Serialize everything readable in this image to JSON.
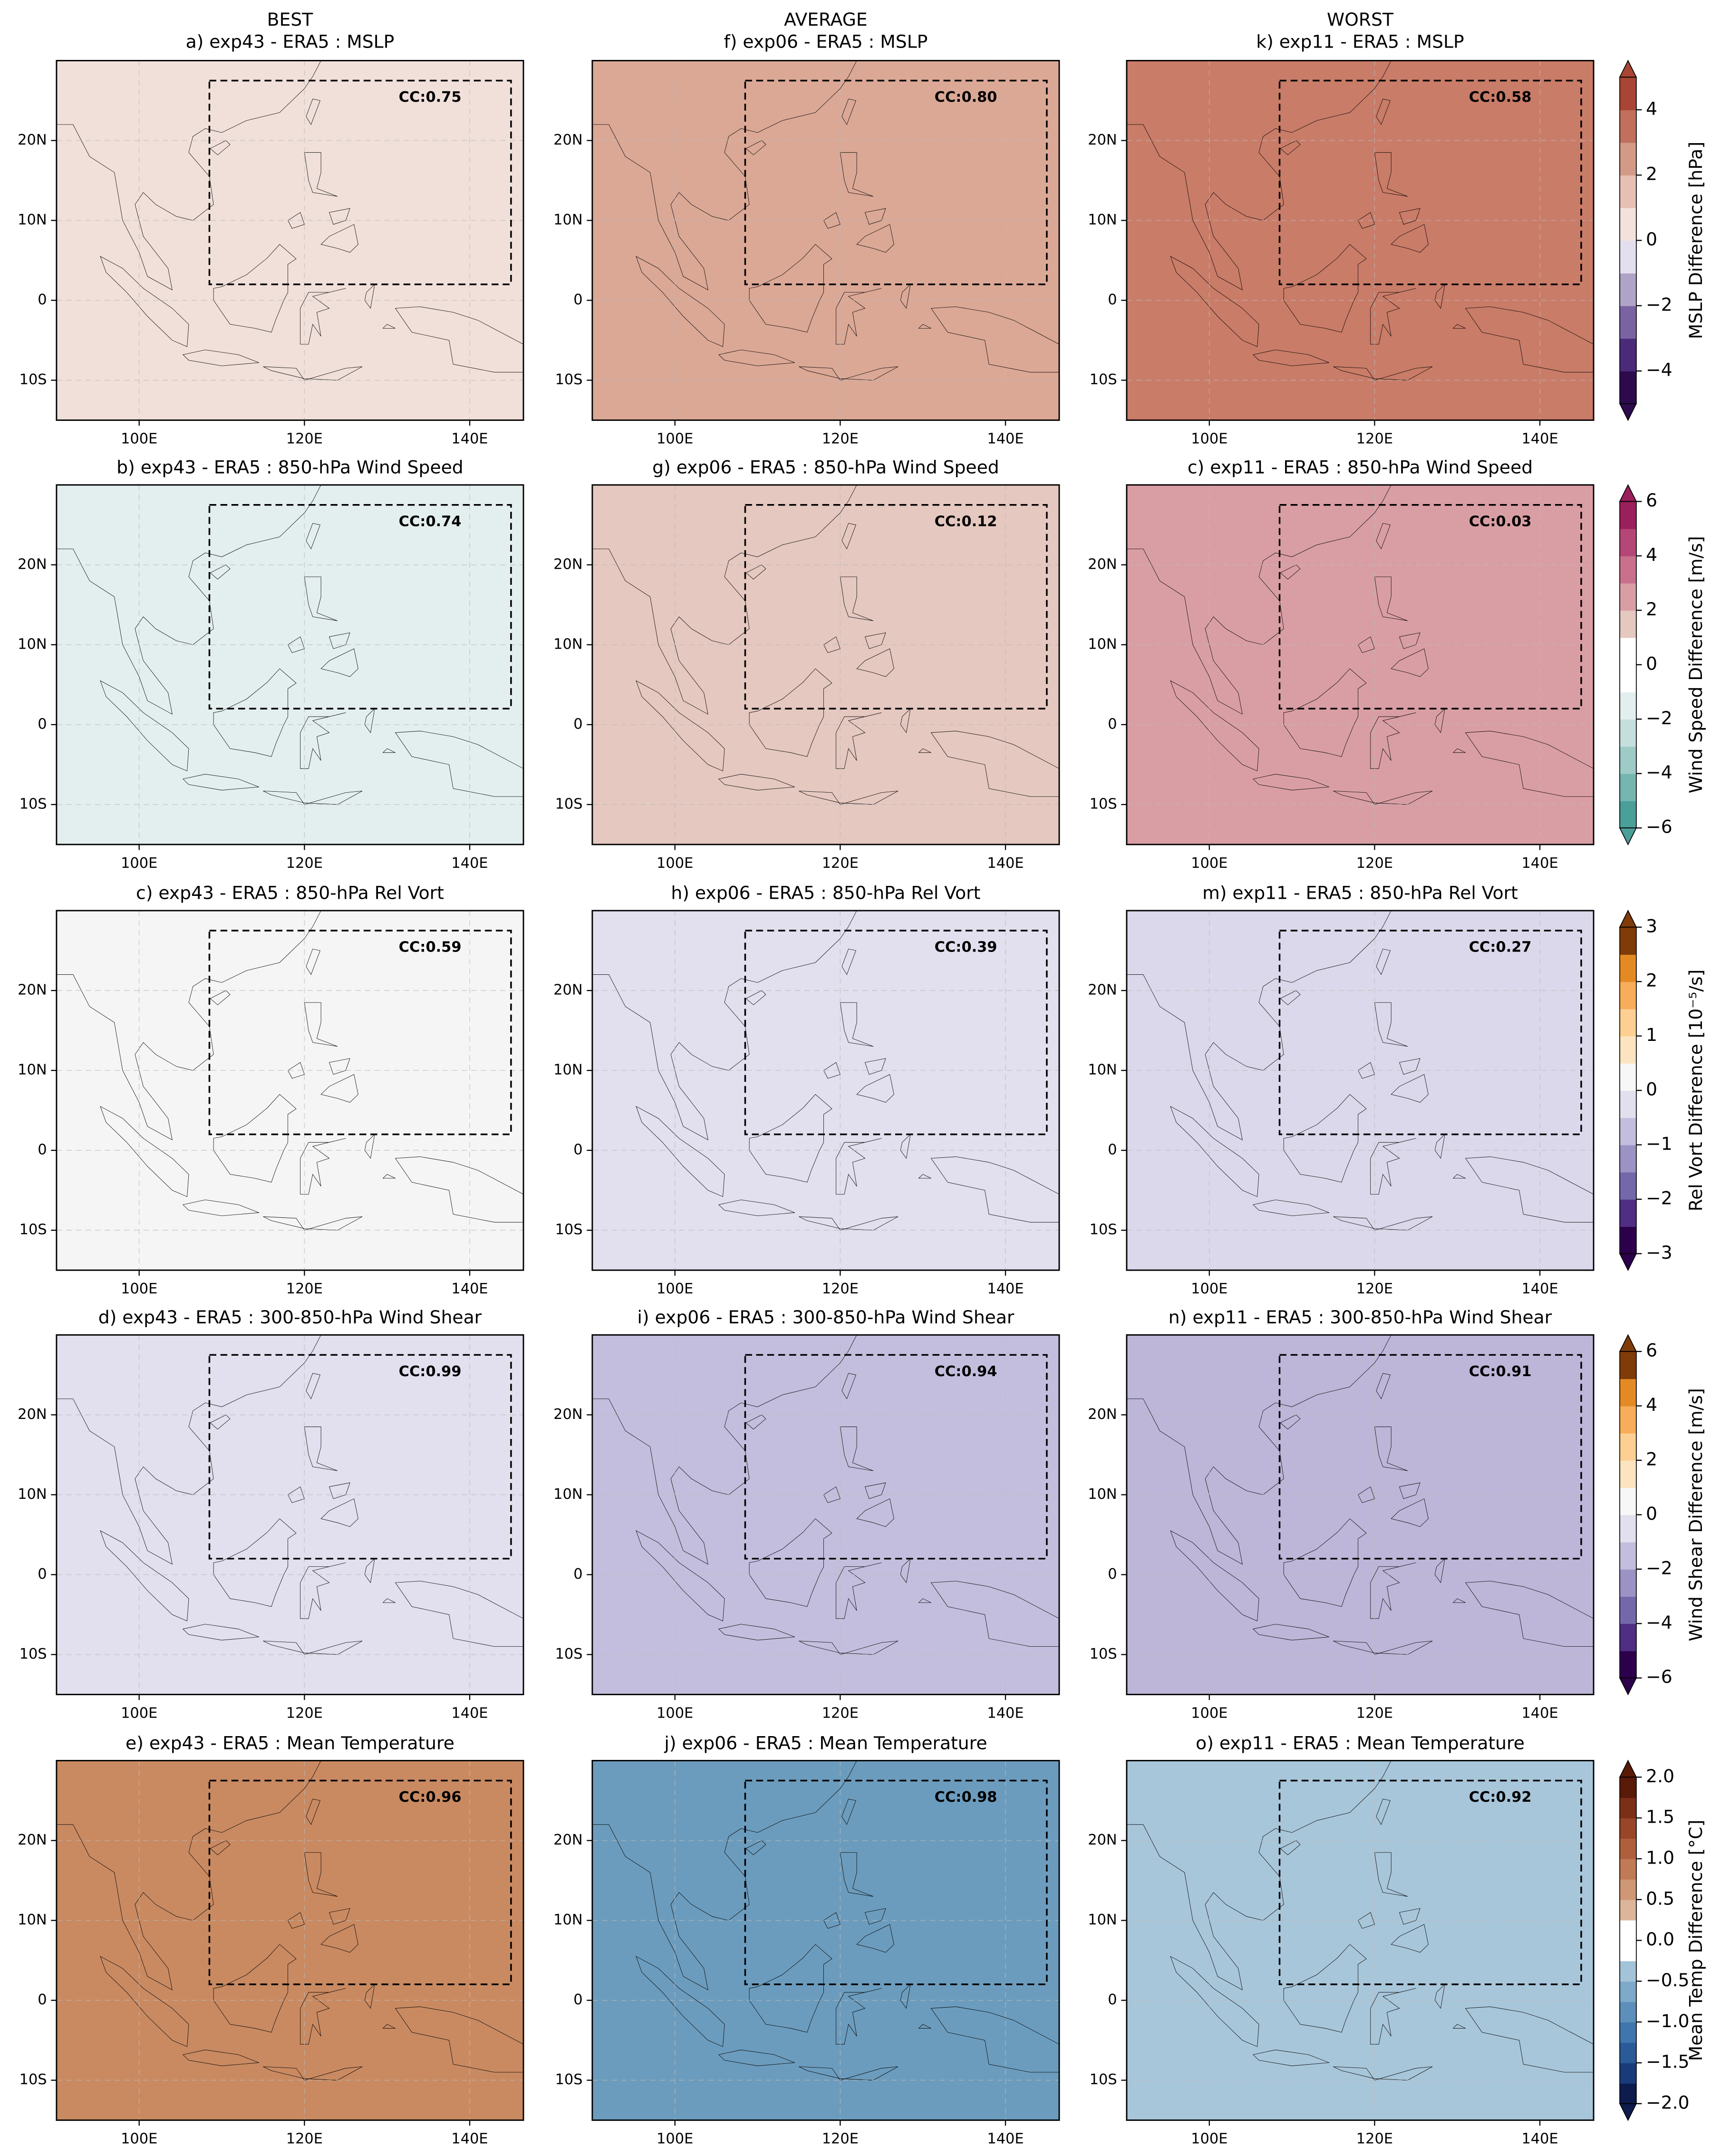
{
  "figure": {
    "columns": [
      "BEST",
      "AVERAGE",
      "WORST"
    ],
    "xlim": [
      90,
      146.5
    ],
    "ylim": [
      -15,
      30
    ],
    "xticks": [
      {
        "value": 100,
        "label": "100E"
      },
      {
        "value": 120,
        "label": "120E"
      },
      {
        "value": 140,
        "label": "140E"
      }
    ],
    "yticks": [
      {
        "value": 20,
        "label": "20N"
      },
      {
        "value": 10,
        "label": "10N"
      },
      0,
      {
        "value": -10,
        "label": "10S"
      }
    ],
    "grid": true,
    "box": {
      "lon": [
        108.5,
        145
      ],
      "lat": [
        2,
        27.5
      ]
    },
    "rows": [
      {
        "colorbar": {
          "label": "MSLP Difference [hPa]",
          "lim": [
            -5,
            5
          ],
          "ticks": [
            {
              "value": -4,
              "label": "−4"
            },
            {
              "value": -2,
              "label": "−2"
            },
            0,
            2,
            4
          ],
          "colors": [
            "#2d0a4e",
            "#4b2a7a",
            "#7a63a3",
            "#b0a3c8",
            "#e4dfee",
            "#f3e2dc",
            "#e7c0b4",
            "#d39a88",
            "#c0705d",
            "#a94534"
          ]
        },
        "panels": [
          {
            "title": "a) exp43 - ERA5 : MSLP",
            "cc": "CC:0.75",
            "fill": "#f1e0da"
          },
          {
            "title": "f) exp06 - ERA5 : MSLP",
            "cc": "CC:0.80",
            "fill": "#dba896"
          },
          {
            "title": "k) exp11 - ERA5 : MSLP",
            "cc": "CC:0.58",
            "fill": "#c97c68"
          }
        ]
      },
      {
        "colorbar": {
          "label": "Wind Speed Difference [m/s]",
          "lim": [
            -6,
            6
          ],
          "ticks": [
            {
              "value": -6,
              "label": "−6"
            },
            {
              "value": -4,
              "label": "−4"
            },
            {
              "value": -2,
              "label": "−2"
            },
            0,
            2,
            4,
            6
          ],
          "colors": [
            "#4a9f98",
            "#75b6b1",
            "#9fcbc7",
            "#c5dfdd",
            "#e3efee",
            "#ffffff",
            "#ffffff",
            "#e5c8c0",
            "#d99ea4",
            "#c9718c",
            "#b44775",
            "#9b1f5c"
          ]
        },
        "panels": [
          {
            "title": "b) exp43 - ERA5 : 850-hPa Wind Speed",
            "cc": "CC:0.74",
            "fill": "#e3efee"
          },
          {
            "title": "g) exp06 - ERA5 : 850-hPa Wind Speed",
            "cc": "CC:0.12",
            "fill": "#e5c8c0"
          },
          {
            "title": "c) exp11 - ERA5 : 850-hPa Wind Speed",
            "cc": "CC:0.03",
            "fill": "#d99ea4"
          }
        ]
      },
      {
        "colorbar": {
          "label": "Rel Vort Difference [10⁻⁵/s]",
          "lim": [
            -3,
            3
          ],
          "ticks": [
            {
              "value": -3,
              "label": "−3"
            },
            {
              "value": -2,
              "label": "−2"
            },
            {
              "value": -1,
              "label": "−1"
            },
            0,
            1,
            2,
            3
          ],
          "colors": [
            "#2d004b",
            "#4f2e84",
            "#7468aa",
            "#9c93c4",
            "#c3bedd",
            "#e2dfee",
            "#f7f7f7",
            "#fde4c0",
            "#fdcf92",
            "#f7ad5a",
            "#e48a25",
            "#7f3b08"
          ]
        },
        "panels": [
          {
            "title": "c) exp43 - ERA5 : 850-hPa Rel Vort",
            "cc": "CC:0.59",
            "fill": "#f5f5f5"
          },
          {
            "title": "h) exp06 - ERA5 : 850-hPa Rel Vort",
            "cc": "CC:0.39",
            "fill": "#e2dfee"
          },
          {
            "title": "m) exp11 - ERA5 : 850-hPa Rel Vort",
            "cc": "CC:0.27",
            "fill": "#dcd8eb"
          }
        ]
      },
      {
        "colorbar": {
          "label": "Wind Shear Difference [m/s]",
          "lim": [
            -6,
            6
          ],
          "ticks": [
            {
              "value": -6,
              "label": "−6"
            },
            {
              "value": -4,
              "label": "−4"
            },
            {
              "value": -2,
              "label": "−2"
            },
            0,
            2,
            4,
            6
          ],
          "colors": [
            "#2d004b",
            "#4f2e84",
            "#7468aa",
            "#9c93c4",
            "#c3bedd",
            "#e2dfee",
            "#f7f7f7",
            "#fde4c0",
            "#fdcf92",
            "#f7ad5a",
            "#e48a25",
            "#7f3b08"
          ]
        },
        "panels": [
          {
            "title": "d) exp43 - ERA5 : 300-850-hPa Wind Shear",
            "cc": "CC:0.99",
            "fill": "#e2dfee"
          },
          {
            "title": "i) exp06 - ERA5 : 300-850-hPa Wind Shear",
            "cc": "CC:0.94",
            "fill": "#c3bedd"
          },
          {
            "title": "n) exp11 - ERA5 : 300-850-hPa Wind Shear",
            "cc": "CC:0.91",
            "fill": "#bdb6d8"
          }
        ]
      },
      {
        "colorbar": {
          "label": "Mean Temp Difference [°C]",
          "lim": [
            -2,
            2
          ],
          "ticks": [
            {
              "value": -2,
              "label": "−2.0"
            },
            {
              "value": -1.5,
              "label": "−1.5"
            },
            {
              "value": -1,
              "label": "−1.0"
            },
            {
              "value": -0.5,
              "label": "−0.5"
            },
            {
              "value": 0,
              "label": "0.0"
            },
            {
              "value": 0.5,
              "label": "0.5"
            },
            {
              "value": 1,
              "label": "1.0"
            },
            {
              "value": 1.5,
              "label": "1.5"
            },
            {
              "value": 2,
              "label": "2.0"
            }
          ],
          "colors": [
            "#0d1b4d",
            "#1a3b7a",
            "#2a5a98",
            "#3f76ad",
            "#5d8fbb",
            "#7ea9c9",
            "#a3c3d8",
            "#ffffff",
            "#ffffff",
            "#ddb59a",
            "#cf9775",
            "#c17a56",
            "#b05f3d",
            "#984627",
            "#7c2f17",
            "#5a1a08"
          ]
        },
        "panels": [
          {
            "title": "e) exp43 - ERA5 : Mean Temperature",
            "cc": "CC:0.96",
            "fill": "#c98a62"
          },
          {
            "title": "j) exp06 - ERA5 : Mean Temperature",
            "cc": "CC:0.98",
            "fill": "#6c9cbd"
          },
          {
            "title": "o) exp11 - ERA5 : Mean Temperature",
            "cc": "CC:0.92",
            "fill": "#a8c6da"
          }
        ]
      }
    ]
  }
}
